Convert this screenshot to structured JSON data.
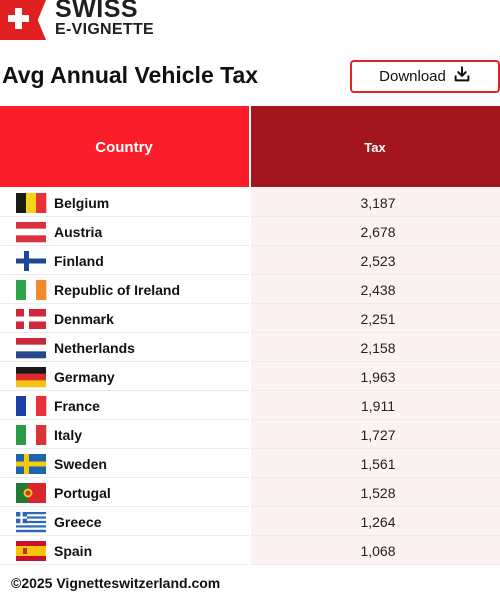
{
  "brand": {
    "line1": "SWISS",
    "line2": "E-VIGNETTE",
    "color": "#e02020"
  },
  "title": "Avg Annual Vehicle Tax",
  "download": {
    "label": "Download",
    "icon": "download-icon",
    "border_color": "#e0242e"
  },
  "colors": {
    "header_country": "#fb1e2a",
    "header_tax": "#a3161d",
    "row_tax_bg": "#fdf2f2",
    "divider": "#ececec"
  },
  "chart_data": {
    "type": "table",
    "columns": [
      "Country",
      "Tax"
    ],
    "rows": [
      {
        "country": "Belgium",
        "flag": "belgium-flag-icon",
        "tax": "3,187",
        "value": 3187
      },
      {
        "country": "Austria",
        "flag": "austria-flag-icon",
        "tax": "2,678",
        "value": 2678
      },
      {
        "country": "Finland",
        "flag": "finland-flag-icon",
        "tax": "2,523",
        "value": 2523
      },
      {
        "country": "Republic of Ireland",
        "flag": "ireland-flag-icon",
        "tax": "2,438",
        "value": 2438
      },
      {
        "country": "Denmark",
        "flag": "denmark-flag-icon",
        "tax": "2,251",
        "value": 2251
      },
      {
        "country": "Netherlands",
        "flag": "netherlands-flag-icon",
        "tax": "2,158",
        "value": 2158
      },
      {
        "country": "Germany",
        "flag": "germany-flag-icon",
        "tax": "1,963",
        "value": 1963
      },
      {
        "country": "France",
        "flag": "france-flag-icon",
        "tax": "1,911",
        "value": 1911
      },
      {
        "country": "Italy",
        "flag": "italy-flag-icon",
        "tax": "1,727",
        "value": 1727
      },
      {
        "country": "Sweden",
        "flag": "sweden-flag-icon",
        "tax": "1,561",
        "value": 1561
      },
      {
        "country": "Portugal",
        "flag": "portugal-flag-icon",
        "tax": "1,528",
        "value": 1528
      },
      {
        "country": "Greece",
        "flag": "greece-flag-icon",
        "tax": "1,264",
        "value": 1264
      },
      {
        "country": "Spain",
        "flag": "spain-flag-icon",
        "tax": "1,068",
        "value": 1068
      }
    ]
  },
  "footer": "©2025 Vignetteswitzerland.com"
}
